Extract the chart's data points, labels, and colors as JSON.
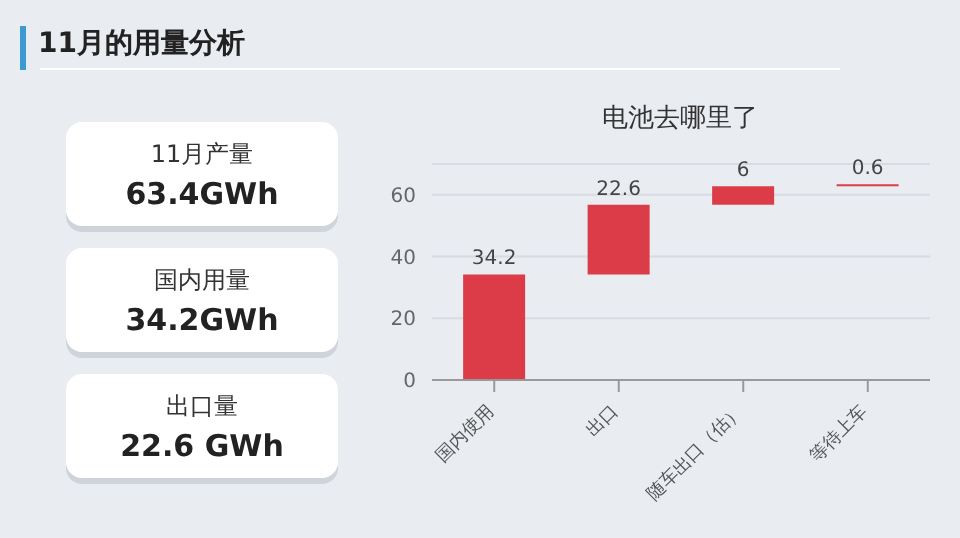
{
  "chart_data": [
    {
      "type": "other",
      "title": "11月的用量分析",
      "annotations": [
        "11月产量",
        "63.4GWh",
        "国内用量",
        "34.2GWh",
        "出口量",
        "22.6 GWh"
      ]
    },
    {
      "type": "bar",
      "title": "电池去哪里了",
      "categories": [
        "国内使用",
        "出口",
        "随车出口（估）",
        "等待上车"
      ],
      "values": [
        34.2,
        22.6,
        6,
        0.6
      ],
      "base": [
        0,
        34.2,
        56.8,
        62.8
      ],
      "color": "#dc3c47",
      "ylim": [
        0,
        70
      ],
      "yticks": [
        0,
        20,
        40,
        60
      ],
      "grid": "y",
      "data_labels": true,
      "legend": false
    }
  ]
}
